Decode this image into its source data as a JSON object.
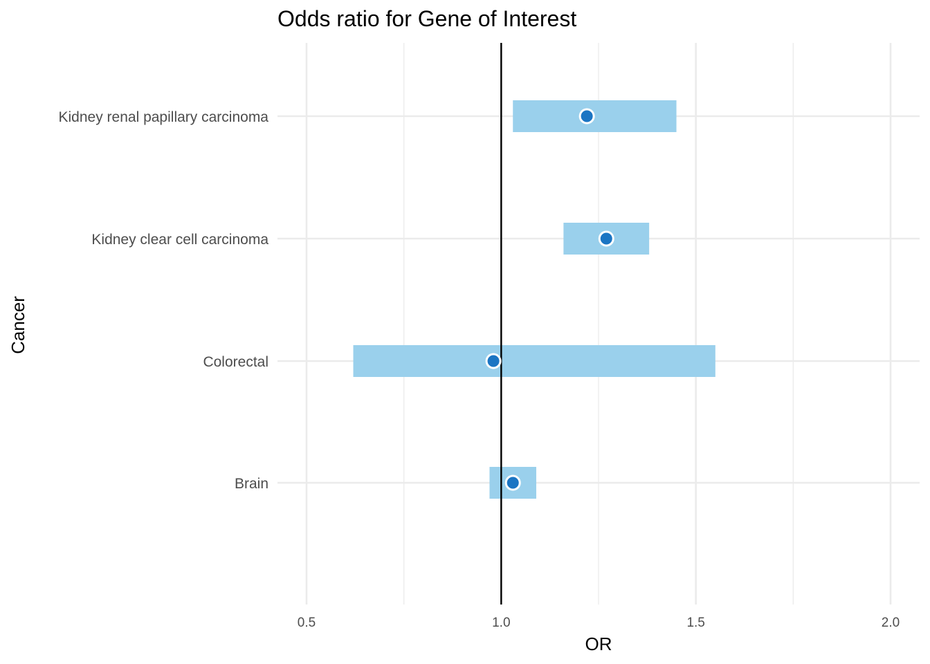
{
  "chart_data": {
    "type": "forest",
    "title": "Odds ratio for Gene of Interest",
    "xlabel": "OR",
    "ylabel": "Cancer",
    "xlim": [
      0.5,
      2.0
    ],
    "x_ticks": [
      0.5,
      1.0,
      1.5,
      2.0
    ],
    "x_tick_labels": [
      "0.5",
      "1.0",
      "1.5",
      "2.0"
    ],
    "reference_line": 1.0,
    "grid": true,
    "colors": {
      "interval": "#9ad0ec",
      "point": "#1b75c3",
      "point_outline": "#ffffff",
      "reference": "#000000"
    },
    "rows": [
      {
        "label": "Kidney renal papillary carcinoma",
        "or": 1.22,
        "lower": 1.03,
        "upper": 1.45
      },
      {
        "label": "Kidney clear cell carcinoma",
        "or": 1.27,
        "lower": 1.16,
        "upper": 1.38
      },
      {
        "label": "Colorectal",
        "or": 0.98,
        "lower": 0.62,
        "upper": 1.55
      },
      {
        "label": "Brain",
        "or": 1.03,
        "lower": 0.97,
        "upper": 1.09
      }
    ]
  }
}
